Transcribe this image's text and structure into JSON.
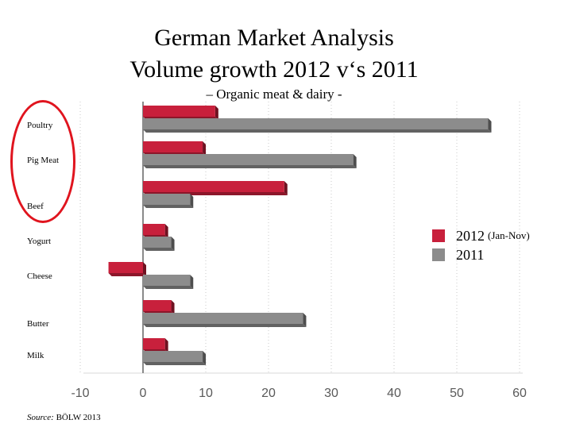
{
  "title": {
    "line1": "German Market Analysis",
    "line2": "Volume growth 2012 v‘s 2011",
    "line3": "– Organic meat & dairy -"
  },
  "chart_data": {
    "type": "bar",
    "orientation": "horizontal",
    "categories": [
      "Poultry",
      "Pig Meat",
      "Beef",
      "Yogurt",
      "Cheese",
      "Butter",
      "Milk"
    ],
    "series": [
      {
        "name": "2012 (Jan-Nov)",
        "color": "#c8203c",
        "values": [
          11.5,
          9.5,
          22.5,
          3.5,
          -5.5,
          4.5,
          3.5
        ]
      },
      {
        "name": "2011",
        "color": "#8c8c8c",
        "values": [
          55,
          33.5,
          7.5,
          4.5,
          7.5,
          25.5,
          9.5
        ]
      }
    ],
    "xlim": [
      -10,
      60
    ],
    "xticks": [
      -10,
      0,
      10,
      20,
      30,
      40,
      50,
      60
    ],
    "grid": "vertical dotted",
    "legend_position": "right"
  },
  "legend": {
    "s1_main": "2012",
    "s1_sub": "(Jan-Nov)",
    "s2_main": "2011"
  },
  "source": {
    "label": "Source:",
    "text": "BÖLW 2013"
  }
}
